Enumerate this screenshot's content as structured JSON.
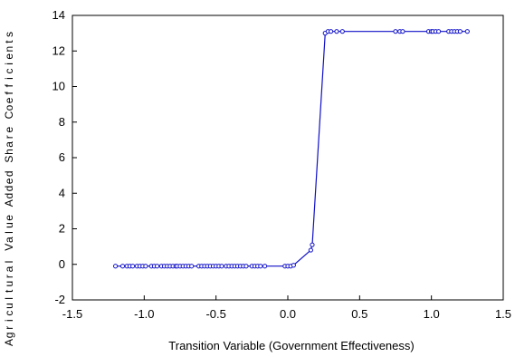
{
  "chart_data": {
    "type": "line",
    "title": "",
    "xlabel": "Transition Variable (Government Effectiveness)",
    "ylabel": "Agricultural Value Added Share Coefficients",
    "xlim": [
      -1.5,
      1.5
    ],
    "ylim": [
      -2,
      14
    ],
    "x_ticks": [
      -1.5,
      -1.0,
      -0.5,
      0.0,
      0.5,
      1.0,
      1.5
    ],
    "x_tick_labels": [
      "-1.5",
      "-1.0",
      "-0.5",
      "0.0",
      "0.5",
      "1.0",
      "1.5"
    ],
    "y_ticks": [
      -2,
      0,
      2,
      4,
      6,
      8,
      10,
      12,
      14
    ],
    "y_tick_labels": [
      "-2",
      "0",
      "2",
      "4",
      "6",
      "8",
      "10",
      "12",
      "14"
    ],
    "grid": false,
    "legend": "none",
    "line_color": "#1010c8",
    "series": [
      {
        "x": [
          -1.2,
          -1.15,
          -1.12,
          -1.1,
          -1.08,
          -1.05,
          -1.03,
          -1.01,
          -0.99,
          -0.95,
          -0.93,
          -0.91,
          -0.88,
          -0.86,
          -0.84,
          -0.82,
          -0.8,
          -0.78,
          -0.77,
          -0.75,
          -0.73,
          -0.71,
          -0.69,
          -0.67,
          -0.62,
          -0.6,
          -0.58,
          -0.56,
          -0.54,
          -0.52,
          -0.5,
          -0.48,
          -0.46,
          -0.43,
          -0.41,
          -0.39,
          -0.37,
          -0.35,
          -0.33,
          -0.31,
          -0.29,
          -0.25,
          -0.23,
          -0.21,
          -0.19,
          -0.16,
          -0.02,
          0.0,
          0.02,
          0.04,
          0.16,
          0.17,
          0.26,
          0.28,
          0.3,
          0.34,
          0.38,
          0.75,
          0.78,
          0.8,
          0.98,
          1.0,
          1.01,
          1.03,
          1.05,
          1.12,
          1.14,
          1.16,
          1.18,
          1.2,
          1.25
        ],
        "y": [
          -0.1,
          -0.1,
          -0.1,
          -0.1,
          -0.1,
          -0.1,
          -0.1,
          -0.1,
          -0.1,
          -0.1,
          -0.1,
          -0.1,
          -0.1,
          -0.1,
          -0.1,
          -0.1,
          -0.1,
          -0.1,
          -0.1,
          -0.1,
          -0.1,
          -0.1,
          -0.1,
          -0.1,
          -0.1,
          -0.1,
          -0.1,
          -0.1,
          -0.1,
          -0.1,
          -0.1,
          -0.1,
          -0.1,
          -0.1,
          -0.1,
          -0.1,
          -0.1,
          -0.1,
          -0.1,
          -0.1,
          -0.1,
          -0.1,
          -0.1,
          -0.1,
          -0.1,
          -0.1,
          -0.1,
          -0.1,
          -0.1,
          -0.05,
          0.8,
          1.1,
          13.0,
          13.1,
          13.1,
          13.1,
          13.1,
          13.1,
          13.1,
          13.1,
          13.1,
          13.1,
          13.1,
          13.1,
          13.1,
          13.1,
          13.1,
          13.1,
          13.1,
          13.1,
          13.1
        ]
      }
    ]
  }
}
